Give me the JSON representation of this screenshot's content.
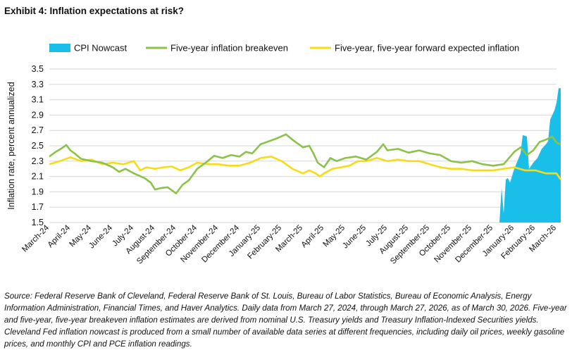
{
  "title": "Exhibit 4: Inflation expectations at risk?",
  "source": "Source: Federal Reserve Bank of Cleveland, Federal Reserve Bank of St. Louis, Bureau of Labor Statistics, Bureau of Economic Analysis, Energy Information Administration, Financial Times, and Haver Analytics. Daily data from March 27, 2024, through March 27, 2026, as of March 30, 2026. Five-year and five-year, five-year breakeven inflation estimates are derived from nominal U.S. Treasury yields and Treasury Inflation-Indexed Securities yields. Cleveland Fed inflation nowcast is produced from a small number of available data series at different frequencies, including daily oil prices, weekly gasoline prices, and monthly CPI and PCE inflation readings.",
  "colors": {
    "nowcast": "#19bfe8",
    "breakeven": "#8bc34a",
    "forward": "#f5dc1a",
    "grid": "#d7d7d7"
  },
  "chart_data": {
    "type": "line",
    "ylabel": "Inflation rate, percent annualized",
    "ylim": [
      1.5,
      3.5
    ],
    "yticks": [
      "1.5",
      "1.7",
      "1.9",
      "2.1",
      "2.3",
      "2.5",
      "2.7",
      "2.9",
      "3.1",
      "3.3",
      "3.5"
    ],
    "categories": [
      "March-24",
      "April-24",
      "May-24",
      "June-24",
      "July-24",
      "August-24",
      "September-24",
      "October-24",
      "November-24",
      "December-24",
      "January-25",
      "February-25",
      "March-25",
      "April-25",
      "May-25",
      "June-25",
      "July-25",
      "August-25",
      "September-25",
      "October-25",
      "November-25",
      "December-25",
      "January-26",
      "February-26",
      "March-26"
    ],
    "legend": [
      "CPI Nowcast",
      "Five-year inflation breakeven",
      "Five-year, five-year forward expected inflation"
    ],
    "series": [
      {
        "name": "Five-year inflation breakeven",
        "type": "line",
        "points": [
          [
            0,
            2.36
          ],
          [
            0.3,
            2.42
          ],
          [
            0.6,
            2.47
          ],
          [
            0.8,
            2.51
          ],
          [
            1.0,
            2.44
          ],
          [
            1.2,
            2.4
          ],
          [
            1.5,
            2.33
          ],
          [
            2.0,
            2.3
          ],
          [
            2.5,
            2.28
          ],
          [
            3.0,
            2.22
          ],
          [
            3.3,
            2.16
          ],
          [
            3.6,
            2.2
          ],
          [
            4.0,
            2.14
          ],
          [
            4.5,
            2.08
          ],
          [
            4.8,
            2.02
          ],
          [
            5.0,
            1.93
          ],
          [
            5.3,
            1.95
          ],
          [
            5.6,
            1.96
          ],
          [
            6.0,
            1.88
          ],
          [
            6.3,
            1.99
          ],
          [
            6.6,
            2.05
          ],
          [
            7.0,
            2.2
          ],
          [
            7.4,
            2.28
          ],
          [
            7.8,
            2.37
          ],
          [
            8.2,
            2.34
          ],
          [
            8.6,
            2.38
          ],
          [
            9.0,
            2.36
          ],
          [
            9.3,
            2.42
          ],
          [
            9.6,
            2.4
          ],
          [
            10.0,
            2.52
          ],
          [
            10.4,
            2.56
          ],
          [
            10.8,
            2.6
          ],
          [
            11.2,
            2.65
          ],
          [
            11.5,
            2.58
          ],
          [
            11.8,
            2.52
          ],
          [
            12.0,
            2.48
          ],
          [
            12.3,
            2.5
          ],
          [
            12.5,
            2.4
          ],
          [
            12.7,
            2.28
          ],
          [
            13.0,
            2.22
          ],
          [
            13.3,
            2.34
          ],
          [
            13.6,
            2.3
          ],
          [
            14.0,
            2.34
          ],
          [
            14.5,
            2.36
          ],
          [
            15.0,
            2.32
          ],
          [
            15.5,
            2.42
          ],
          [
            15.8,
            2.52
          ],
          [
            16.0,
            2.44
          ],
          [
            16.5,
            2.46
          ],
          [
            17.0,
            2.41
          ],
          [
            17.5,
            2.44
          ],
          [
            18.0,
            2.4
          ],
          [
            18.5,
            2.38
          ],
          [
            19.0,
            2.3
          ],
          [
            19.5,
            2.28
          ],
          [
            20.0,
            2.3
          ],
          [
            20.5,
            2.26
          ],
          [
            21.0,
            2.24
          ],
          [
            21.5,
            2.26
          ],
          [
            22.0,
            2.42
          ],
          [
            22.3,
            2.48
          ],
          [
            22.6,
            2.38
          ],
          [
            22.9,
            2.44
          ],
          [
            23.2,
            2.55
          ],
          [
            23.5,
            2.58
          ],
          [
            23.8,
            2.62
          ],
          [
            24.0,
            2.54
          ],
          [
            24.2,
            2.52
          ]
        ]
      },
      {
        "name": "Five-year, five-year forward expected inflation",
        "type": "line",
        "points": [
          [
            0,
            2.26
          ],
          [
            0.5,
            2.3
          ],
          [
            1.0,
            2.35
          ],
          [
            1.5,
            2.3
          ],
          [
            2.0,
            2.32
          ],
          [
            2.5,
            2.26
          ],
          [
            3.0,
            2.28
          ],
          [
            3.5,
            2.26
          ],
          [
            4.0,
            2.3
          ],
          [
            4.3,
            2.18
          ],
          [
            4.6,
            2.22
          ],
          [
            5.0,
            2.2
          ],
          [
            5.4,
            2.22
          ],
          [
            5.8,
            2.23
          ],
          [
            6.2,
            2.18
          ],
          [
            6.6,
            2.22
          ],
          [
            7.0,
            2.28
          ],
          [
            7.5,
            2.26
          ],
          [
            8.0,
            2.26
          ],
          [
            8.5,
            2.24
          ],
          [
            9.0,
            2.24
          ],
          [
            9.5,
            2.28
          ],
          [
            10.0,
            2.34
          ],
          [
            10.5,
            2.36
          ],
          [
            11.0,
            2.3
          ],
          [
            11.5,
            2.2
          ],
          [
            12.0,
            2.14
          ],
          [
            12.3,
            2.18
          ],
          [
            12.6,
            2.14
          ],
          [
            12.8,
            2.1
          ],
          [
            13.0,
            2.14
          ],
          [
            13.4,
            2.2
          ],
          [
            13.8,
            2.22
          ],
          [
            14.2,
            2.24
          ],
          [
            14.6,
            2.3
          ],
          [
            15.0,
            2.3
          ],
          [
            15.5,
            2.34
          ],
          [
            16.0,
            2.3
          ],
          [
            16.5,
            2.32
          ],
          [
            17.0,
            2.3
          ],
          [
            17.5,
            2.3
          ],
          [
            18.0,
            2.26
          ],
          [
            18.5,
            2.22
          ],
          [
            19.0,
            2.2
          ],
          [
            19.5,
            2.2
          ],
          [
            20.0,
            2.18
          ],
          [
            20.5,
            2.18
          ],
          [
            21.0,
            2.18
          ],
          [
            21.5,
            2.2
          ],
          [
            22.0,
            2.22
          ],
          [
            22.5,
            2.18
          ],
          [
            23.0,
            2.18
          ],
          [
            23.5,
            2.14
          ],
          [
            24.0,
            2.14
          ],
          [
            24.2,
            2.06
          ]
        ]
      },
      {
        "name": "CPI Nowcast",
        "type": "area",
        "points": [
          [
            21.3,
            1.5
          ],
          [
            21.4,
            1.95
          ],
          [
            21.5,
            1.62
          ],
          [
            21.6,
            2.06
          ],
          [
            21.7,
            2.08
          ],
          [
            21.8,
            2.02
          ],
          [
            22.0,
            2.2
          ],
          [
            22.3,
            2.4
          ],
          [
            22.4,
            2.64
          ],
          [
            22.6,
            2.62
          ],
          [
            22.7,
            2.2
          ],
          [
            22.9,
            2.28
          ],
          [
            23.1,
            2.34
          ],
          [
            23.3,
            2.46
          ],
          [
            23.5,
            2.52
          ],
          [
            23.6,
            2.56
          ],
          [
            23.7,
            2.84
          ],
          [
            23.8,
            2.9
          ],
          [
            23.9,
            2.96
          ],
          [
            24.0,
            3.06
          ],
          [
            24.1,
            3.25
          ],
          [
            24.2,
            3.25
          ]
        ]
      }
    ]
  }
}
